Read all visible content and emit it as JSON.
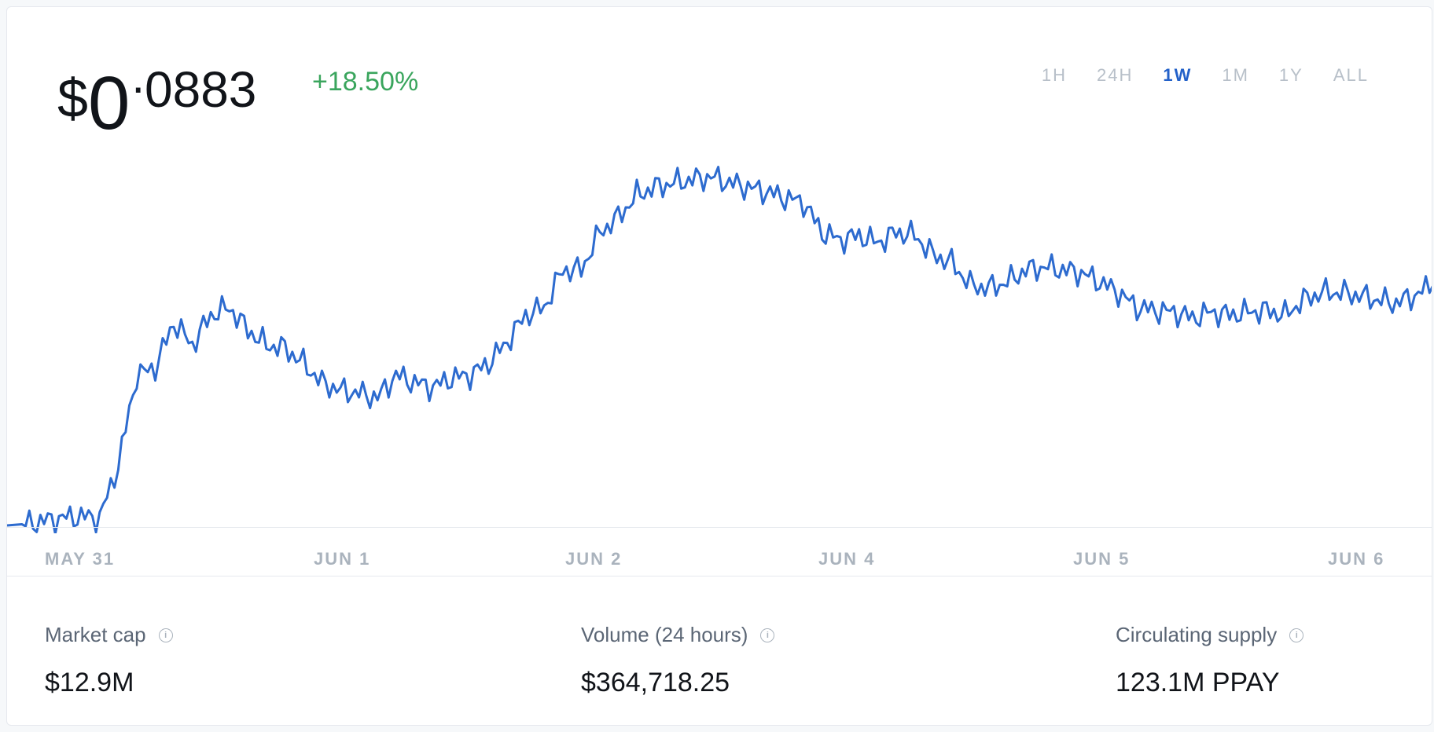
{
  "price": {
    "currency": "$",
    "whole": "0",
    "separator": ".",
    "decimals": "0883",
    "change": "+18.50%"
  },
  "ranges": [
    "1H",
    "24H",
    "1W",
    "1M",
    "1Y",
    "ALL"
  ],
  "active_range": "1W",
  "colors": {
    "line": "#2d6bcf",
    "positive": "#3aa55d",
    "active": "#2361c9",
    "muted": "#aab3bd"
  },
  "chart_data": {
    "type": "line",
    "x_ticks": [
      "MAY 31",
      "JUN 1",
      "JUN 2",
      "JUN 4",
      "JUN 5",
      "JUN 6"
    ],
    "series": [
      {
        "values": [
          0.07,
          0.0701,
          0.0703,
          0.0705,
          0.0706,
          0.0705,
          0.074,
          0.08,
          0.0805,
          0.0835,
          0.082,
          0.084,
          0.0845,
          0.083,
          0.082,
          0.0818,
          0.0808,
          0.0795,
          0.079,
          0.0788,
          0.0785,
          0.08,
          0.0795,
          0.0792,
          0.0798,
          0.08,
          0.0808,
          0.0822,
          0.084,
          0.0845,
          0.087,
          0.087,
          0.0895,
          0.0905,
          0.092,
          0.0925,
          0.0928,
          0.093,
          0.0932,
          0.0928,
          0.0925,
          0.0922,
          0.0918,
          0.0915,
          0.0895,
          0.089,
          0.0893,
          0.0888,
          0.0895,
          0.0893,
          0.088,
          0.0875,
          0.086,
          0.0858,
          0.0862,
          0.087,
          0.0872,
          0.087,
          0.0868,
          0.0862,
          0.0855,
          0.0845,
          0.0843,
          0.0842,
          0.0838,
          0.0842,
          0.084,
          0.0842,
          0.0843,
          0.084,
          0.085,
          0.0855,
          0.0855,
          0.0853,
          0.085,
          0.0848,
          0.0853,
          0.086
        ]
      }
    ]
  },
  "stats": [
    {
      "label": "Market cap",
      "value": "$12.9M"
    },
    {
      "label": "Volume (24 hours)",
      "value": "$364,718.25"
    },
    {
      "label": "Circulating supply",
      "value": "123.1M PPAY"
    }
  ],
  "icons": {
    "info": "info-circle-icon"
  }
}
